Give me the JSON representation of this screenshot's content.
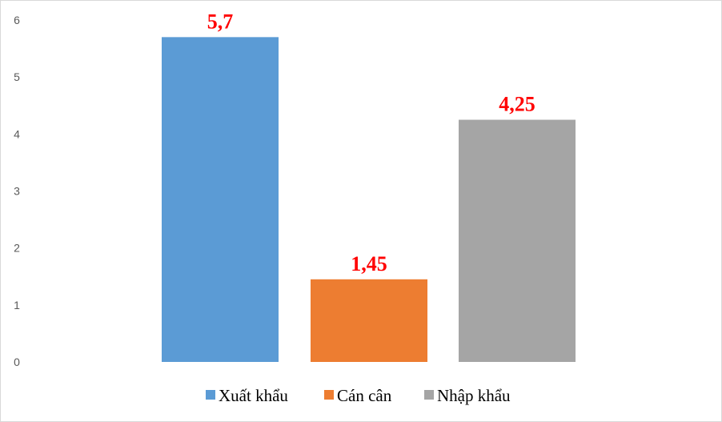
{
  "chart_data": {
    "type": "bar",
    "categories": [
      "Xuất khẩu",
      "Cán cân",
      "Nhập khẩu"
    ],
    "values": [
      5.7,
      1.45,
      4.25
    ],
    "data_labels": [
      "5,7",
      "1,45",
      "4,25"
    ],
    "colors": [
      "#5b9bd5",
      "#ed7d31",
      "#a5a5a5"
    ],
    "data_label_color": "#ff0000",
    "title": "",
    "xlabel": "",
    "ylabel": "",
    "ylim": [
      0,
      6
    ],
    "yticks": [
      0,
      1,
      2,
      3,
      4,
      5,
      6
    ],
    "ytick_labels": [
      "0",
      "1",
      "2",
      "3",
      "4",
      "5",
      "6"
    ],
    "grid": false,
    "legend": {
      "position": "bottom",
      "entries": [
        "Xuất khẩu",
        "Cán cân",
        "Nhập khẩu"
      ]
    }
  }
}
